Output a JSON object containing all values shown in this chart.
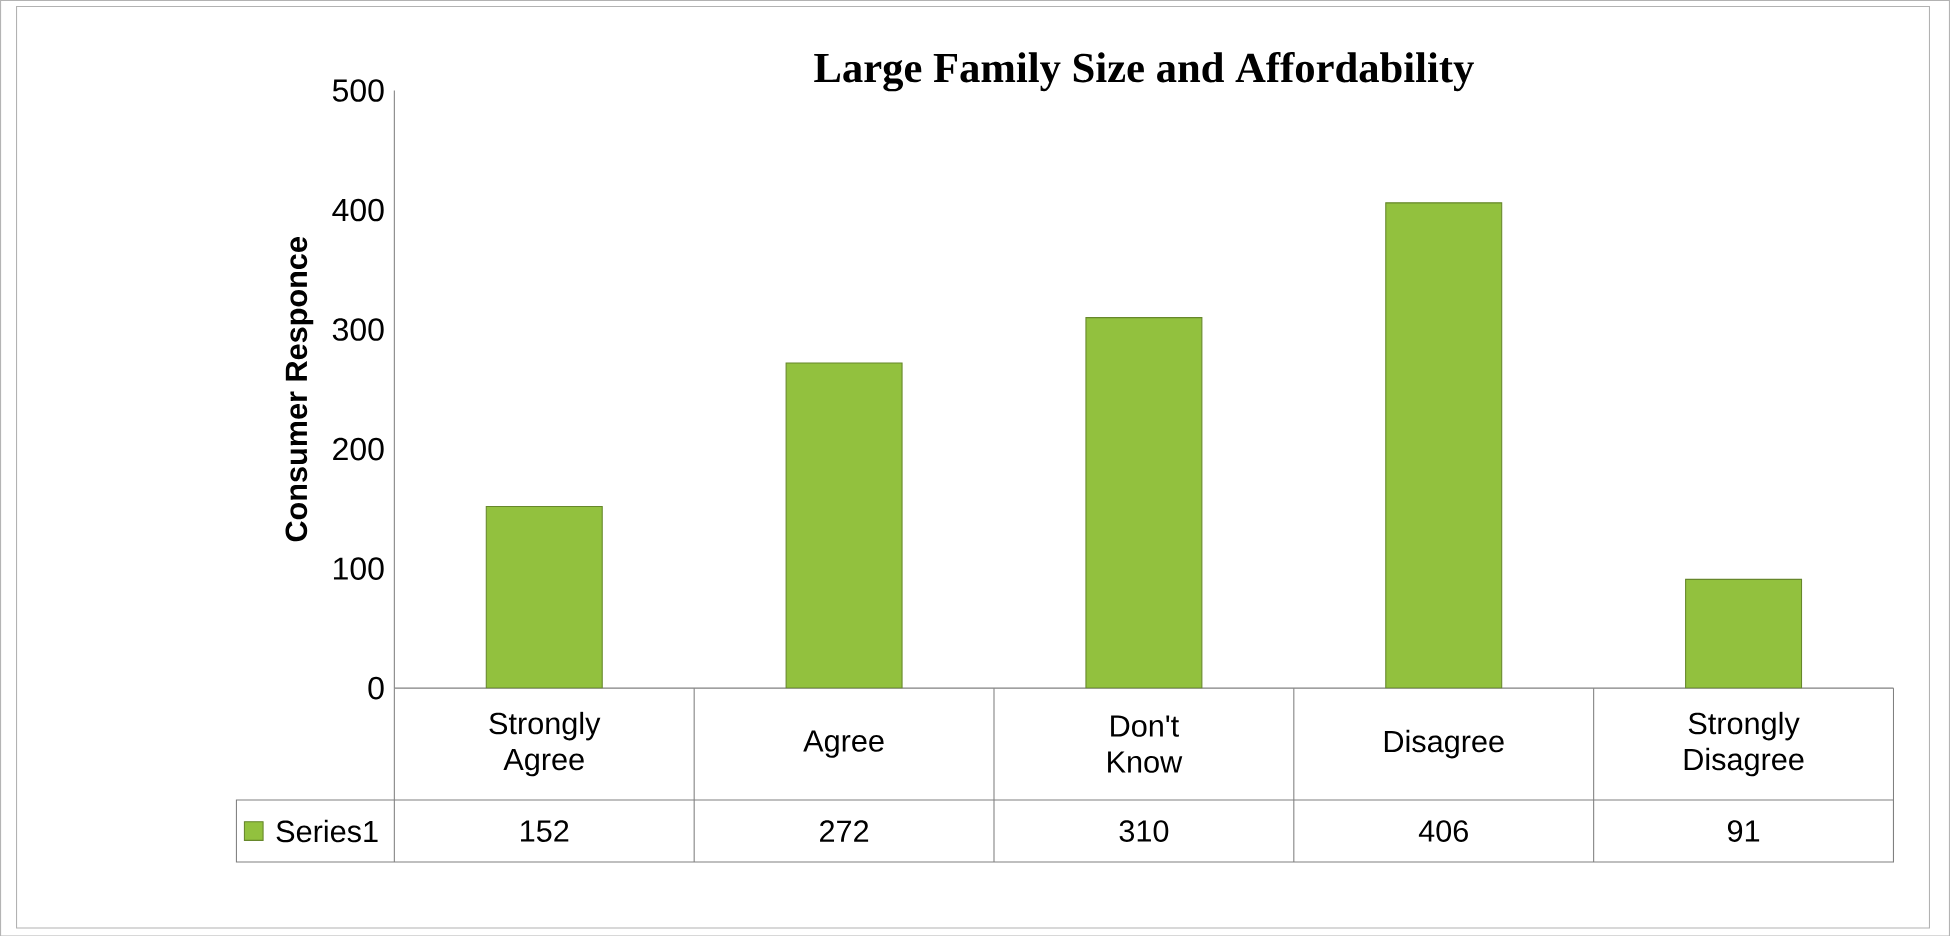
{
  "chart_data": {
    "type": "bar",
    "title": "Large Family Size and Affordability",
    "ylabel": "Consumer Responce",
    "categories": [
      "Strongly Agree",
      "Agree",
      "Don't Know",
      "Disagree",
      "Strongly Disagree"
    ],
    "series": [
      {
        "name": "Series1",
        "color": "#92c13e",
        "values": [
          152,
          272,
          310,
          406,
          91
        ]
      }
    ],
    "ylim": [
      0,
      500
    ],
    "yticks": [
      0,
      100,
      200,
      300,
      400,
      500
    ],
    "data_labels": true
  }
}
